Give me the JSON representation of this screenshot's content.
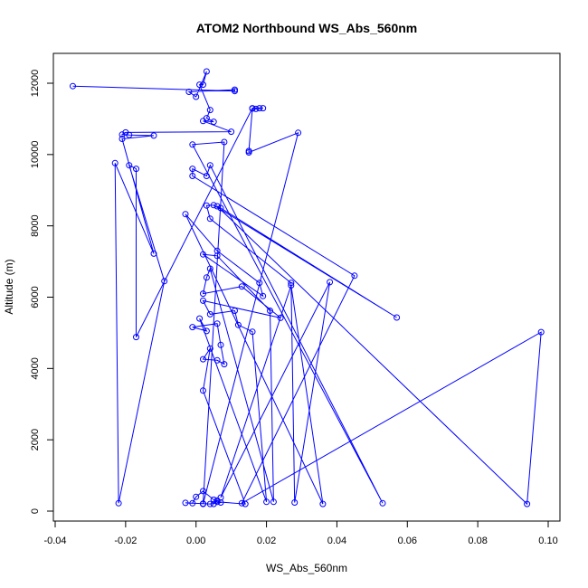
{
  "chart_data": {
    "type": "line",
    "title": "ATOM2 Northbound WS_Abs_560nm",
    "xlabel": "WS_Abs_560nm",
    "ylabel": "Altitude (m)",
    "xlim": [
      -0.04,
      0.1
    ],
    "ylim": [
      0,
      12400
    ],
    "xticks": [
      "-0.04",
      "-0.02",
      "0.00",
      "0.02",
      "0.04",
      "0.06",
      "0.08",
      "0.10"
    ],
    "yticks": [
      "0",
      "2000",
      "4000",
      "6000",
      "8000",
      "10000",
      "12000"
    ],
    "xtick_values": [
      -0.04,
      -0.02,
      0.0,
      0.02,
      0.04,
      0.06,
      0.08,
      0.1
    ],
    "ytick_values": [
      0,
      2000,
      4000,
      6000,
      8000,
      10000,
      12000
    ],
    "grid": false,
    "series": [
      {
        "color": "#0000ff",
        "marker": "open-circle",
        "points": [
          [
            -0.035,
            11920
          ],
          [
            0.011,
            11780
          ],
          [
            0.011,
            11820
          ],
          [
            -0.002,
            11760
          ],
          [
            0.0,
            11620
          ],
          [
            0.003,
            12330
          ],
          [
            0.002,
            11960
          ],
          [
            0.001,
            11960
          ],
          [
            0.004,
            11250
          ],
          [
            0.003,
            11020
          ],
          [
            0.005,
            10920
          ],
          [
            0.002,
            10940
          ],
          [
            0.01,
            10640
          ],
          [
            -0.02,
            10620
          ],
          [
            -0.021,
            10560
          ],
          [
            -0.019,
            10550
          ],
          [
            -0.012,
            10530
          ],
          [
            -0.021,
            10440
          ],
          [
            -0.012,
            7220
          ],
          [
            -0.023,
            9760
          ],
          [
            -0.022,
            220
          ],
          [
            -0.009,
            6450
          ],
          [
            -0.019,
            9700
          ],
          [
            -0.017,
            9600
          ],
          [
            -0.017,
            4880
          ],
          [
            0.016,
            11300
          ],
          [
            0.018,
            11300
          ],
          [
            0.019,
            11300
          ],
          [
            0.017,
            11280
          ],
          [
            0.016,
            11290
          ],
          [
            0.015,
            10100
          ],
          [
            0.015,
            10060
          ],
          [
            0.029,
            10610
          ],
          [
            0.002,
            200
          ],
          [
            0.008,
            10350
          ],
          [
            -0.001,
            10280
          ],
          [
            0.053,
            220
          ],
          [
            0.004,
            9700
          ],
          [
            0.003,
            9400
          ],
          [
            -0.001,
            9600
          ],
          [
            -0.001,
            9400
          ],
          [
            0.045,
            6600
          ],
          [
            0.013,
            220
          ],
          [
            0.098,
            5020
          ],
          [
            0.094,
            200
          ],
          [
            0.006,
            8550
          ],
          [
            0.007,
            8500
          ],
          [
            0.057,
            5430
          ],
          [
            0.005,
            8580
          ],
          [
            0.003,
            8570
          ],
          [
            0.004,
            8200
          ],
          [
            0.027,
            6400
          ],
          [
            0.028,
            240
          ],
          [
            0.038,
            6420
          ],
          [
            0.007,
            380
          ],
          [
            0.027,
            6330
          ],
          [
            0.036,
            200
          ],
          [
            -0.003,
            8330
          ],
          [
            0.006,
            7300
          ],
          [
            0.018,
            6400
          ],
          [
            0.019,
            6030
          ],
          [
            0.002,
            7200
          ],
          [
            0.006,
            7160
          ],
          [
            0.021,
            5620
          ],
          [
            0.022,
            260
          ],
          [
            0.004,
            6800
          ],
          [
            0.003,
            6550
          ],
          [
            0.002,
            6100
          ],
          [
            0.013,
            6300
          ],
          [
            0.024,
            5420
          ],
          [
            0.002,
            5900
          ],
          [
            0.004,
            5520
          ],
          [
            0.011,
            5620
          ],
          [
            0.012,
            5220
          ],
          [
            0.016,
            5030
          ],
          [
            0.02,
            260
          ],
          [
            0.001,
            5400
          ],
          [
            0.003,
            5050
          ],
          [
            -0.001,
            5160
          ],
          [
            0.006,
            5260
          ],
          [
            0.007,
            4660
          ],
          [
            0.008,
            4120
          ],
          [
            0.006,
            4230
          ],
          [
            0.002,
            4260
          ],
          [
            0.004,
            4560
          ],
          [
            0.002,
            3380
          ],
          [
            0.014,
            200
          ],
          [
            0.006,
            260
          ],
          [
            0.005,
            320
          ],
          [
            0.002,
            560
          ],
          [
            0.0,
            400
          ],
          [
            -0.001,
            220
          ],
          [
            -0.003,
            230
          ],
          [
            0.002,
            210
          ],
          [
            0.004,
            200
          ],
          [
            0.007,
            240
          ],
          [
            0.006,
            300
          ],
          [
            0.005,
            200
          ]
        ]
      }
    ]
  }
}
